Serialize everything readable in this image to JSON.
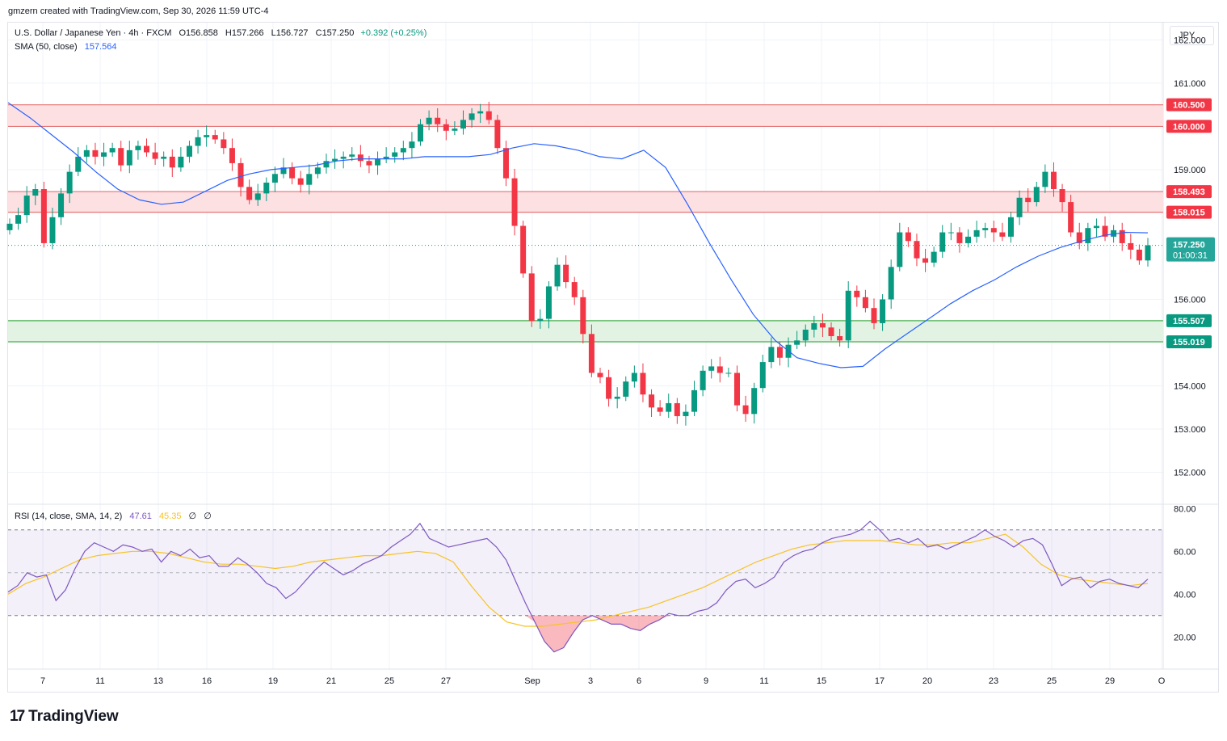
{
  "header": {
    "creator": "gmzern created with TradingView.com, Sep 30, 2026 11:59 UTC-4"
  },
  "legend": {
    "symbol": "U.S. Dollar / Japanese Yen · 4h · FXCM",
    "open": "O156.858",
    "high": "H157.266",
    "low": "L156.727",
    "close": "C157.250",
    "change": "+0.392 (+0.25%)",
    "sma_label": "SMA (50, close)",
    "sma_value": "157.564",
    "rsi_label": "RSI (14, close, SMA, 14, 2)",
    "rsi_value": "47.61",
    "rsi_ma_value": "45.35",
    "rsi_extra1": "∅",
    "rsi_extra2": "∅"
  },
  "currency_button": "JPY",
  "branding": {
    "logo_mark": "17",
    "logo_text": "TradingView"
  },
  "colors": {
    "up": "#089981",
    "down": "#f23645",
    "sma": "#2962ff",
    "rsi": "#7e57c2",
    "rsi_ma": "#f7c325",
    "resistance_zone": "#fde0e2",
    "support_zone": "#e2f3e4"
  },
  "chart_data": [
    {
      "type": "candlestick",
      "title": "U.S. Dollar / Japanese Yen · 4h · FXCM",
      "ylim": [
        151.3,
        162.4
      ],
      "y_ticks": [
        "162.000",
        "161.000",
        "159.000",
        "156.000",
        "154.000",
        "153.000",
        "152.000"
      ],
      "x_ticks": [
        "7",
        "11",
        "13",
        "16",
        "19",
        "21",
        "25",
        "27",
        "Sep",
        "3",
        "6",
        "9",
        "11",
        "15",
        "17",
        "20",
        "23",
        "25",
        "29",
        "O"
      ],
      "price_labels": {
        "resistance_upper_top": "160.500",
        "resistance_upper_bottom": "160.000",
        "resistance_lower_top": "158.493",
        "resistance_lower_bottom": "158.015",
        "last_price": "157.250",
        "countdown": "01:00:31",
        "support_top": "155.507",
        "support_bottom": "155.019"
      },
      "zones": [
        {
          "name": "resistance-upper",
          "low": 160.0,
          "high": 160.5
        },
        {
          "name": "resistance-lower",
          "low": 158.015,
          "high": 158.493
        },
        {
          "name": "support",
          "low": 155.019,
          "high": 155.507
        }
      ],
      "last_price": 157.25,
      "close_path": [
        157.75,
        157.95,
        158.4,
        158.55,
        157.3,
        157.9,
        158.45,
        158.95,
        159.3,
        159.45,
        159.3,
        159.4,
        159.5,
        159.1,
        159.45,
        159.55,
        159.4,
        159.25,
        159.3,
        159.05,
        159.3,
        159.55,
        159.75,
        159.8,
        159.7,
        159.5,
        159.15,
        158.6,
        158.3,
        158.45,
        158.7,
        158.9,
        159.05,
        158.8,
        158.65,
        158.9,
        159.05,
        159.2,
        159.25,
        159.3,
        159.35,
        159.2,
        159.1,
        159.25,
        159.3,
        159.4,
        159.5,
        159.65,
        160.05,
        160.2,
        160.05,
        159.9,
        159.95,
        160.15,
        160.3,
        160.35,
        160.15,
        159.5,
        158.8,
        157.7,
        156.6,
        155.5,
        155.55,
        156.3,
        156.8,
        156.4,
        156.05,
        155.2,
        154.3,
        154.2,
        153.7,
        153.75,
        154.1,
        154.3,
        153.8,
        153.5,
        153.4,
        153.6,
        153.3,
        153.4,
        153.9,
        154.35,
        154.45,
        154.3,
        154.3,
        153.55,
        153.35,
        153.95,
        154.55,
        154.9,
        154.65,
        154.95,
        155.05,
        155.3,
        155.45,
        155.35,
        155.15,
        155.05,
        156.2,
        156.05,
        155.8,
        155.45,
        156.0,
        156.75,
        157.55,
        157.35,
        156.95,
        156.85,
        157.1,
        157.55,
        157.55,
        157.3,
        157.45,
        157.6,
        157.65,
        157.55,
        157.45,
        157.9,
        158.35,
        158.25,
        158.6,
        158.95,
        158.55,
        158.25,
        157.55,
        157.3,
        157.65,
        157.7,
        157.45,
        157.6,
        157.3,
        157.15,
        156.9,
        157.25
      ],
      "sma_path": [
        160.55,
        160.2,
        159.8,
        159.4,
        158.95,
        158.55,
        158.3,
        158.2,
        158.25,
        158.5,
        158.75,
        158.9,
        159.0,
        159.05,
        159.1,
        159.2,
        159.25,
        159.25,
        159.25,
        159.3,
        159.3,
        159.3,
        159.35,
        159.5,
        159.6,
        159.55,
        159.45,
        159.3,
        159.25,
        159.45,
        159.05,
        158.2,
        157.3,
        156.45,
        155.65,
        155.05,
        154.65,
        154.52,
        154.42,
        154.45,
        154.85,
        155.2,
        155.55,
        155.9,
        156.2,
        156.45,
        156.75,
        157.0,
        157.2,
        157.35,
        157.48,
        157.55,
        157.54
      ],
      "sma_value": 157.564
    },
    {
      "type": "line",
      "title": "RSI (14, close, SMA, 14, 2)",
      "ylim": [
        5,
        82
      ],
      "y_ticks": [
        "80.00",
        "60.00",
        "40.00",
        "20.00"
      ],
      "bands": {
        "upper": 70,
        "middle": 50,
        "lower": 30
      },
      "series": [
        {
          "name": "RSI",
          "values": [
            41,
            44,
            50,
            48,
            49,
            37,
            42,
            52,
            60,
            64,
            62,
            60,
            63,
            62,
            60,
            61,
            55,
            60,
            58,
            61,
            57,
            58,
            53,
            53,
            57,
            54,
            50,
            45,
            43,
            38,
            41,
            46,
            51,
            55,
            52,
            49,
            51,
            54,
            56,
            58,
            62,
            65,
            68,
            73,
            66,
            64,
            62,
            63,
            64,
            65,
            66,
            62,
            56,
            46,
            36,
            27,
            18,
            13,
            15,
            22,
            28,
            30,
            28,
            26,
            26,
            24,
            23,
            26,
            28,
            31,
            30,
            30,
            32,
            33,
            36,
            42,
            46,
            47,
            43,
            45,
            48,
            55,
            58,
            60,
            61,
            64,
            66,
            67,
            68,
            70,
            74,
            70,
            65,
            66,
            64,
            66,
            62,
            63,
            61,
            63,
            65,
            67,
            70,
            67,
            65,
            62,
            65,
            66,
            63,
            54,
            44,
            47,
            48,
            43,
            46,
            47,
            45,
            44,
            43,
            47
          ],
          "current": 47.61
        },
        {
          "name": "RSI-based MA",
          "values": [
            40,
            45,
            48,
            52,
            56,
            58,
            59,
            60,
            60,
            59,
            57,
            55,
            54,
            54,
            53,
            52,
            53,
            55,
            56,
            57,
            58,
            58,
            59,
            60,
            59,
            55,
            44,
            34,
            27,
            25,
            25,
            26,
            27,
            28,
            30,
            32,
            34,
            37,
            40,
            43,
            47,
            51,
            55,
            58,
            61,
            63,
            64,
            65,
            65,
            65,
            64,
            63,
            63,
            64,
            64,
            66,
            68,
            62,
            54,
            49,
            47,
            46,
            45,
            44,
            45
          ],
          "current": 45.35
        }
      ]
    }
  ]
}
